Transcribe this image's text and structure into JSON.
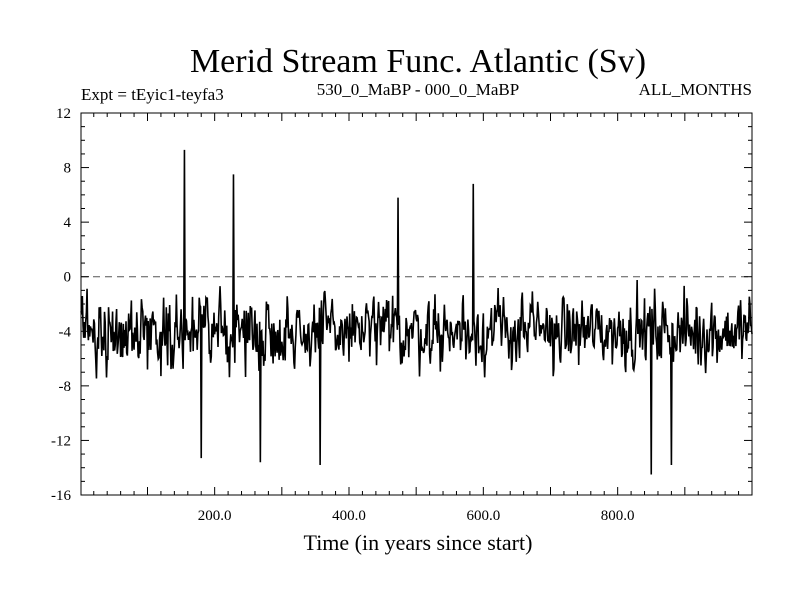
{
  "chart_data": {
    "type": "line",
    "title": "Merid Stream Func. Atlantic (Sv)",
    "subtitle_left": "Expt = tEyic1-teyfa3",
    "subtitle_center": "530_0_MaBP - 000_0_MaBP",
    "subtitle_right": "ALL_MONTHS",
    "xlabel": "Time (in years since start)",
    "ylabel": "",
    "xlim": [
      1,
      1000
    ],
    "ylim": [
      -16,
      12
    ],
    "x_ticks": [
      200,
      400,
      600,
      800
    ],
    "x_tick_labels": [
      "200.0",
      "400.0",
      "600.0",
      "800.0"
    ],
    "y_ticks": [
      -16,
      -12,
      -8,
      -4,
      0,
      4,
      8,
      12
    ],
    "y_tick_labels": [
      "-16",
      "-12",
      "-8",
      "-4",
      "0",
      "4",
      "8",
      "12"
    ],
    "reference_line": 0,
    "grid": false,
    "series": [
      {
        "name": "Merid Stream Func. Atlantic",
        "color": "#000000",
        "sampling": "annual, one value per year (years 1–1000)",
        "mean": -4.0,
        "min": -14.5,
        "max": 9.3,
        "noted_extremes": [
          {
            "x": 155,
            "y": 9.3
          },
          {
            "x": 228,
            "y": 7.5
          },
          {
            "x": 585,
            "y": 6.8
          },
          {
            "x": 473,
            "y": 5.8
          },
          {
            "x": 268,
            "y": -13.6
          },
          {
            "x": 357,
            "y": -13.8
          },
          {
            "x": 180,
            "y": -13.3
          },
          {
            "x": 850,
            "y": -14.5
          },
          {
            "x": 880,
            "y": -13.8
          }
        ]
      }
    ]
  }
}
